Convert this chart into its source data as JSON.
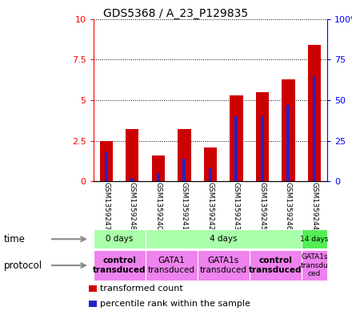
{
  "title": "GDS5368 / A_23_P129835",
  "samples": [
    "GSM1359247",
    "GSM1359248",
    "GSM1359240",
    "GSM1359241",
    "GSM1359242",
    "GSM1359243",
    "GSM1359245",
    "GSM1359246",
    "GSM1359244"
  ],
  "transformed_count": [
    2.5,
    3.2,
    1.6,
    3.2,
    2.1,
    5.3,
    5.5,
    6.3,
    8.4
  ],
  "percentile_rank_scaled": [
    1.8,
    0.2,
    0.5,
    1.4,
    0.8,
    4.0,
    4.0,
    4.7,
    6.5
  ],
  "ylim_left": [
    0,
    10
  ],
  "ylim_right": [
    0,
    100
  ],
  "yticks_left": [
    0,
    2.5,
    5.0,
    7.5,
    10
  ],
  "yticks_right": [
    0,
    25,
    50,
    75,
    100
  ],
  "ytick_labels_left": [
    "0",
    "2.5",
    "5",
    "7.5",
    "10"
  ],
  "ytick_labels_right": [
    "0",
    "25",
    "50",
    "75",
    "100%"
  ],
  "bar_color": "#cc0000",
  "percentile_color": "#2222cc",
  "time_groups": [
    {
      "label": "0 days",
      "start": 0,
      "end": 2,
      "color": "#aaffaa"
    },
    {
      "label": "4 days",
      "start": 2,
      "end": 8,
      "color": "#aaffaa"
    },
    {
      "label": "14 days",
      "start": 8,
      "end": 9,
      "color": "#55ee55"
    }
  ],
  "protocol_groups": [
    {
      "label": "control\ntransduced",
      "start": 0,
      "end": 2,
      "color": "#ee82ee",
      "bold": true
    },
    {
      "label": "GATA1\ntransduced",
      "start": 2,
      "end": 4,
      "color": "#ee82ee",
      "bold": false
    },
    {
      "label": "GATA1s\ntransduced",
      "start": 4,
      "end": 6,
      "color": "#ee82ee",
      "bold": false
    },
    {
      "label": "control\ntransduced",
      "start": 6,
      "end": 8,
      "color": "#ee82ee",
      "bold": true
    },
    {
      "label": "GATA1s\ntransdu\nced",
      "start": 8,
      "end": 9,
      "color": "#ee82ee",
      "bold": false
    }
  ],
  "sample_bg_color": "#cccccc",
  "legend_items": [
    {
      "color": "#cc0000",
      "label": "transformed count"
    },
    {
      "color": "#2222cc",
      "label": "percentile rank within the sample"
    }
  ]
}
